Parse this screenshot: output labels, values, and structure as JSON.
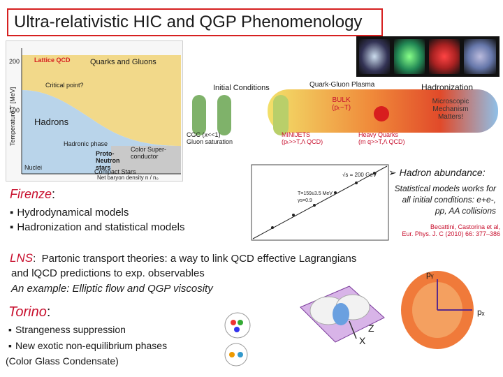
{
  "title": "Ultra-relativistic HIC and QGP Phenomenology",
  "phase_diagram": {
    "ylabel": "Temperature T [MeV]",
    "lattice": "Lattice QCD",
    "quarks_gluons": "Quarks and Gluons",
    "critical_point": "Critical point?",
    "hadrons": "Hadrons",
    "hadronic_phase": "Hadronic phase",
    "superconductor": "Color Super-conductor",
    "proto_neutron": "Proto-Neutron stars",
    "compact": "Compact Stars",
    "xlabel": "Net baryon density n / n₀",
    "nuclei": "Nuclei",
    "y200": "200",
    "y100": "100"
  },
  "evolution": {
    "initial": "Initial Conditions",
    "qgp": "Quark-Gluon Plasma",
    "hadronization": "Hadronization",
    "bulk": "BULK",
    "bulk_sub": "(pₜ~T)",
    "microscopic": "Microscopic Mechanism Matters!",
    "cgc": "CGC (x<<1)",
    "gluon_sat": "Gluon saturation",
    "minijets": "MINIJETS",
    "minijets_sub": "(pₜ>>T,Λ QCD)",
    "heavy": "Heavy Quarks",
    "heavy_sub": "(m q>>T,Λ QCD)"
  },
  "hadron": {
    "heading": "Hadron abundance:",
    "text": "Statistical models works for all initial conditions: e+e-, pp, AA collisions",
    "ref1": "Becattini, Castorina et al,",
    "ref2": "Eur. Phys. J. C (2010) 66: 377–386",
    "plot_legend1": "T=159±3.5 MeV",
    "plot_legend2": "γs=0.9",
    "plot_title": "√s = 200 GeV"
  },
  "firenze": {
    "name": "Firenze",
    "items": [
      "Hydrodynamical models",
      "Hadronization and statistical models"
    ]
  },
  "lns": {
    "name": "LNS",
    "line1": "Partonic transport theories: a way to link QCD effective Lagrangians",
    "line2": "and lQCD predictions to exp. observables",
    "line3": "An example: Elliptic flow and QGP viscosity"
  },
  "torino": {
    "name": "Torino",
    "items": [
      "Strangeness suppression",
      "New exotic non-equilibrium phases"
    ],
    "extra": "(Color Glass Condensate)"
  },
  "axes": {
    "z": "Z",
    "x": "X",
    "py": "pᵧ",
    "px": "pₓ"
  },
  "colors": {
    "title_border": "#d62020",
    "accent_red": "#c8102e",
    "qgp_orange": "#e55a1c",
    "phase_yellow": "#f2c44e"
  }
}
